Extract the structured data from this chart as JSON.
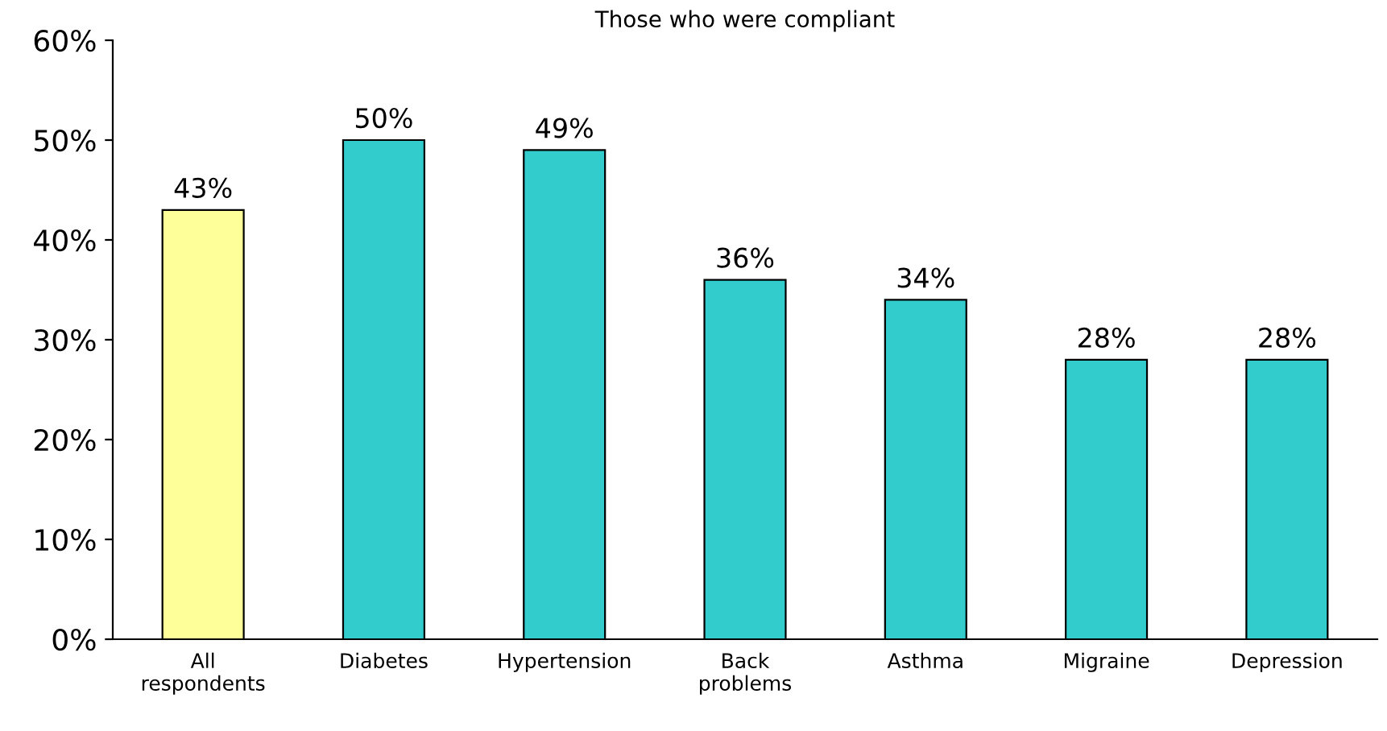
{
  "chart_data": {
    "type": "bar",
    "title": "Those who were compliant",
    "categories": [
      "All\nrespondents",
      "Diabetes",
      "Hypertension",
      "Back\nproblems",
      "Asthma",
      "Migraine",
      "Depression"
    ],
    "values": [
      43,
      50,
      49,
      36,
      34,
      28,
      28
    ],
    "colors": [
      "#ffff99",
      "#33cccc",
      "#33cccc",
      "#33cccc",
      "#33cccc",
      "#33cccc",
      "#33cccc"
    ],
    "value_labels": [
      "43%",
      "50%",
      "49%",
      "36%",
      "34%",
      "28%",
      "28%"
    ],
    "ylim": [
      0,
      60
    ],
    "yticks": [
      {
        "value": 0,
        "label": "0%"
      },
      {
        "value": 10,
        "label": "10%"
      },
      {
        "value": 20,
        "label": "20%"
      },
      {
        "value": 30,
        "label": "30%"
      },
      {
        "value": 40,
        "label": "40%"
      },
      {
        "value": 50,
        "label": "50%"
      },
      {
        "value": 60,
        "label": "60%"
      }
    ],
    "grid": false,
    "legend": false
  }
}
